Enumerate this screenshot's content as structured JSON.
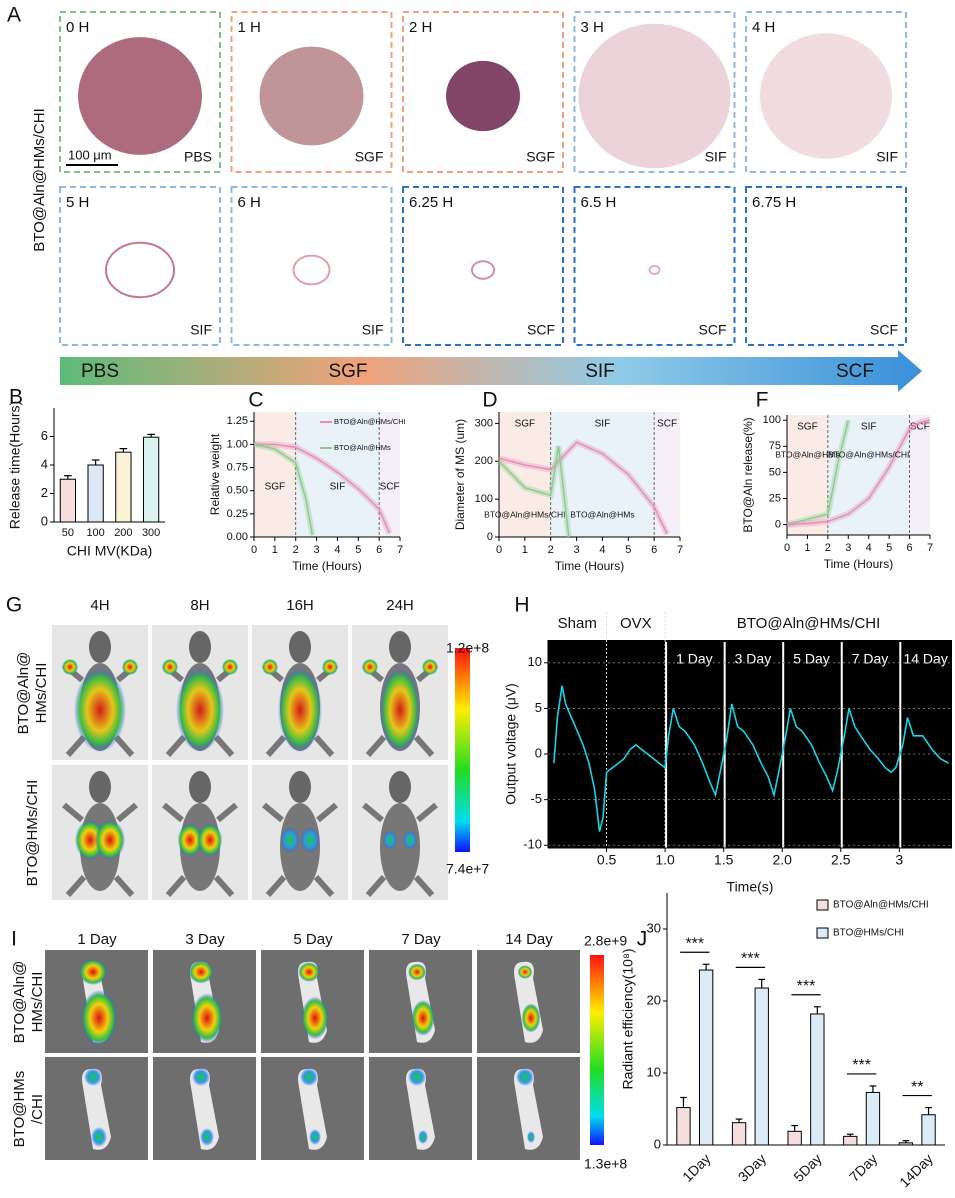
{
  "panel_labels": [
    "A",
    "B",
    "C",
    "D",
    "F",
    "G",
    "H",
    "I",
    "J"
  ],
  "panel_a": {
    "row_label": "BTO@Aln@HMs/CHI",
    "scale_bar": "100 μm",
    "tiles": [
      {
        "time": "0 H",
        "medium": "PBS"
      },
      {
        "time": "1 H",
        "medium": "SGF"
      },
      {
        "time": "2 H",
        "medium": "SGF"
      },
      {
        "time": "3 H",
        "medium": "SIF"
      },
      {
        "time": "4 H",
        "medium": "SIF"
      },
      {
        "time": "5 H",
        "medium": "SIF"
      },
      {
        "time": "6 H",
        "medium": "SIF"
      },
      {
        "time": "6.25 H",
        "medium": "SCF"
      },
      {
        "time": "6.5 H",
        "medium": "SCF"
      },
      {
        "time": "6.75 H",
        "medium": "SCF"
      }
    ],
    "arrow_labels": [
      "PBS",
      "SGF",
      "SIF",
      "SCF"
    ]
  },
  "panel_g": {
    "columns": [
      "4H",
      "8H",
      "16H",
      "24H"
    ],
    "rows": [
      [
        "BTO@Aln@",
        "HMs/CHI"
      ],
      [
        "BTO@HMs/CHI"
      ]
    ],
    "colorbar_max": "1.2e+8",
    "colorbar_min": "7.4e+7"
  },
  "panel_i": {
    "columns": [
      "1 Day",
      "3 Day",
      "5 Day",
      "7 Day",
      "14 Day"
    ],
    "rows": [
      [
        "BTO@Aln@",
        "HMs/CHI"
      ],
      [
        "BTO@HMs",
        "/CHI"
      ]
    ],
    "colorbar_max": "2.8e+9",
    "colorbar_min": "1.3e+8"
  },
  "chart_data": [
    {
      "type": "bar",
      "categories": [
        "50",
        "100",
        "200",
        "300"
      ],
      "values": [
        3.0,
        4.0,
        4.9,
        5.95
      ],
      "errors": [
        0.25,
        0.35,
        0.25,
        0.2
      ],
      "colors": [
        "#f7dede",
        "#dde7f7",
        "#fbf3d8",
        "#ddf3f3"
      ],
      "ylim": [
        0,
        8
      ],
      "yticks": [
        0,
        2,
        4,
        6
      ],
      "x_label": "CHI MV(KDa)",
      "y_label": "Release time(Hours)"
    },
    {
      "type": "line",
      "xlim": [
        0,
        7
      ],
      "xticks": [
        0,
        1,
        2,
        3,
        4,
        5,
        6,
        7
      ],
      "ylim": [
        0,
        1.35
      ],
      "yticks": [
        {
          "value": 0,
          "label": "0.00"
        },
        0.25,
        {
          "value": 0.5,
          "label": "0.50"
        },
        0.75,
        {
          "value": 1,
          "label": "1.00"
        },
        1.25
      ],
      "x_label": "Time (Hours)",
      "y_label": "Relative weight",
      "legend": "upper right",
      "regions": [
        {
          "label": "SGF",
          "from": 0,
          "to": 2,
          "color": "#fbebe6"
        },
        {
          "label": "SIF",
          "from": 2,
          "to": 6,
          "color": "#e9f2f9"
        },
        {
          "label": "SCF",
          "from": 6,
          "to": 7,
          "color": "#f4eff8"
        }
      ],
      "series": [
        {
          "name": "BTO@Aln@HMs/CHI",
          "color": "#e58fb8",
          "x": [
            0,
            1,
            2,
            3,
            4,
            5,
            6,
            6.5
          ],
          "values": [
            1.0,
            1.0,
            0.97,
            0.85,
            0.7,
            0.52,
            0.3,
            0.04
          ]
        },
        {
          "name": "BTO@Aln@HMs",
          "color": "#8fca8f",
          "x": [
            0,
            1,
            2,
            2.5,
            2.8
          ],
          "values": [
            1.0,
            0.95,
            0.8,
            0.4,
            0.02
          ]
        }
      ]
    },
    {
      "type": "line",
      "xlim": [
        0,
        7
      ],
      "xticks": [
        0,
        1,
        2,
        3,
        4,
        5,
        6,
        7
      ],
      "ylim": [
        0,
        330
      ],
      "yticks": [
        0,
        100,
        200,
        300
      ],
      "x_label": "Time (Hours)",
      "y_label": "Diameter of MS (um)",
      "legend": "lower",
      "regions": [
        {
          "label": "SGF",
          "from": 0,
          "to": 2,
          "color": "#fbebe6"
        },
        {
          "label": "SIF",
          "from": 2,
          "to": 6,
          "color": "#e9f2f9"
        },
        {
          "label": "SCF",
          "from": 6,
          "to": 7,
          "color": "#f4eff8"
        }
      ],
      "series": [
        {
          "name": "BTO@Aln@HMs/CHI",
          "color": "#e58fb8",
          "x": [
            0,
            1,
            2,
            3,
            4,
            5,
            6,
            6.5
          ],
          "values": [
            208,
            190,
            178,
            250,
            220,
            165,
            80,
            8
          ]
        },
        {
          "name": "BTO@Aln@HMs",
          "color": "#8fca8f",
          "x": [
            0,
            1,
            2,
            2.3,
            2.7
          ],
          "values": [
            200,
            130,
            110,
            240,
            0
          ]
        }
      ]
    },
    {
      "type": "line",
      "xlim": [
        0,
        7
      ],
      "xticks": [
        0,
        1,
        2,
        3,
        4,
        5,
        6,
        7
      ],
      "ylim": [
        -10,
        105
      ],
      "yticks": [
        0,
        25,
        50,
        75,
        100
      ],
      "x_label": "Time (Hours)",
      "y_label": "BTO@Aln release(%)",
      "legend": "upper",
      "regions": [
        {
          "label": "SGF",
          "from": 0,
          "to": 2,
          "color": "#fbebe6"
        },
        {
          "label": "SIF",
          "from": 2,
          "to": 6,
          "color": "#e9f2f9"
        },
        {
          "label": "SCF",
          "from": 6,
          "to": 7,
          "color": "#f4eff8"
        }
      ],
      "series": [
        {
          "name": "BTO@Aln@HMs",
          "color": "#8fca8f",
          "x": [
            0,
            1,
            2,
            2.5,
            3
          ],
          "values": [
            0,
            5,
            10,
            60,
            100
          ]
        },
        {
          "name": "BTO@Aln@HMs/CHI",
          "color": "#e58fb8",
          "x": [
            0,
            1,
            2,
            3,
            4,
            5,
            6,
            6.5,
            7
          ],
          "values": [
            0,
            1,
            3,
            10,
            25,
            55,
            92,
            98,
            100
          ]
        }
      ]
    },
    {
      "type": "line",
      "background": "#000000",
      "grid": true,
      "xlim": [
        0,
        3.45
      ],
      "xticks": [
        0.5,
        {
          "value": 1,
          "label": "1.0"
        },
        1.5,
        {
          "value": 2,
          "label": "2.0"
        },
        2.5,
        3
      ],
      "ylim": [
        -10.3,
        12.5
      ],
      "yticks": [
        -10,
        -5,
        0,
        5,
        10
      ],
      "x_label": "Time(s)",
      "y_label": "Output voltage (μV)",
      "segments": [
        {
          "label": "Sham",
          "from": 0,
          "to": 0.5
        },
        {
          "label": "OVX",
          "from": 0.5,
          "to": 1.0
        },
        {
          "label": "BTO@Aln@HMs/CHI",
          "from": 1.0,
          "to": 3.45
        }
      ],
      "day_segments": [
        {
          "label": "1 Day",
          "from": 1.0,
          "to": 1.5
        },
        {
          "label": "3 Day",
          "from": 1.5,
          "to": 2.0
        },
        {
          "label": "5 Day",
          "from": 2.0,
          "to": 2.5
        },
        {
          "label": "7 Day",
          "from": 2.5,
          "to": 3.0
        },
        {
          "label": "14 Day",
          "from": 3.0,
          "to": 3.45
        }
      ],
      "series": [
        {
          "color": "#19d3e6",
          "x": [
            0.05,
            0.08,
            0.12,
            0.15,
            0.2,
            0.25,
            0.3,
            0.35,
            0.4,
            0.44,
            0.47,
            0.5,
            0.55,
            0.6,
            0.65,
            0.7,
            0.75,
            0.8,
            0.85,
            0.9,
            0.95,
            1.0,
            1.03,
            1.07,
            1.12,
            1.17,
            1.25,
            1.32,
            1.38,
            1.43,
            1.47,
            1.53,
            1.57,
            1.62,
            1.67,
            1.75,
            1.82,
            1.88,
            1.93,
            1.97,
            2.03,
            2.07,
            2.12,
            2.17,
            2.25,
            2.32,
            2.38,
            2.43,
            2.47,
            2.53,
            2.57,
            2.62,
            2.67,
            2.75,
            2.82,
            2.88,
            2.93,
            2.97,
            3.03,
            3.07,
            3.12,
            3.2,
            3.28,
            3.35,
            3.42
          ],
          "values": [
            -1,
            4,
            7.5,
            5.5,
            4,
            2.5,
            1,
            -1,
            -4,
            -8.5,
            -7,
            -2,
            -1.5,
            -1,
            -0.5,
            0.5,
            1,
            0.5,
            0,
            -0.5,
            -1,
            -1.5,
            2,
            5,
            3,
            2.5,
            1,
            -1,
            -3,
            -4.5,
            -2,
            2,
            5.5,
            3,
            2.5,
            1,
            -1,
            -2.5,
            -4.5,
            -2,
            2,
            5,
            3,
            2.5,
            1,
            -1,
            -2.5,
            -4,
            -2,
            2,
            5,
            3,
            2,
            0.5,
            -0.5,
            -1.5,
            -2,
            -1.5,
            1,
            4,
            2,
            2,
            0.5,
            -0.5,
            -1
          ]
        }
      ]
    },
    {
      "type": "bar",
      "categories": [
        "1Day",
        "3Day",
        "5Day",
        "7Day",
        "14Day"
      ],
      "ylim": [
        0,
        35
      ],
      "yticks": [
        0,
        10,
        20,
        30
      ],
      "y_label": "Radiant efficiency(10⁸)",
      "legend": "upper right",
      "significance": [
        "***",
        "***",
        "***",
        "***",
        "**"
      ],
      "series": [
        {
          "name": "BTO@Aln@HMs/CHI",
          "color": "#f7dede",
          "values": [
            5.2,
            3.1,
            1.9,
            1.2,
            0.3
          ],
          "errors": [
            1.4,
            0.5,
            0.8,
            0.3,
            0.3
          ]
        },
        {
          "name": "BTO@HMs/CHI",
          "color": "#dcecf7",
          "values": [
            24.3,
            21.8,
            18.2,
            7.3,
            4.2
          ],
          "errors": [
            0.8,
            1.2,
            1.0,
            0.9,
            1.0
          ]
        }
      ]
    }
  ]
}
